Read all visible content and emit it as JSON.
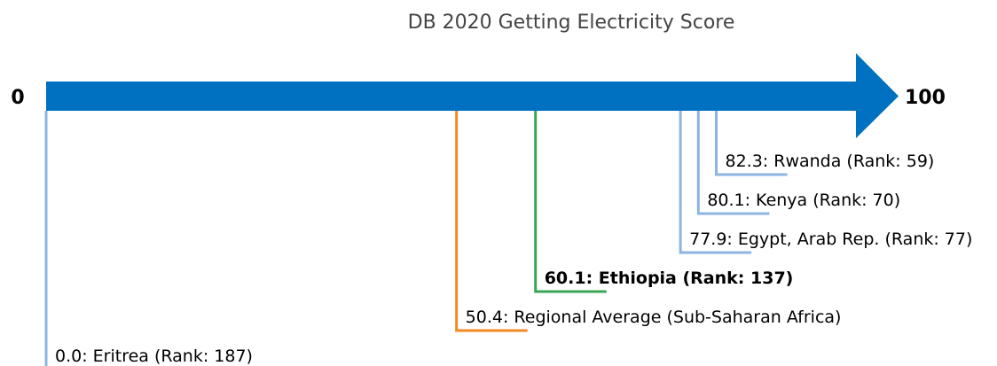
{
  "chart_data": {
    "type": "scale",
    "title": "DB 2020 Getting Electricity Score",
    "axis": {
      "min": 0,
      "max": 100,
      "min_label": "0",
      "max_label": "100",
      "arrow_color": "#0070c0"
    },
    "colors": {
      "country": "#8db4e2",
      "regional": "#f08a24",
      "highlight": "#3aa655"
    },
    "entries": [
      {
        "label": "82.3: Rwanda (Rank: 59)",
        "value": 82.3,
        "kind": "country",
        "bold": false
      },
      {
        "label": "80.1: Kenya (Rank: 70)",
        "value": 80.1,
        "kind": "country",
        "bold": false
      },
      {
        "label": "77.9: Egypt, Arab Rep. (Rank: 77)",
        "value": 77.9,
        "kind": "country",
        "bold": false
      },
      {
        "label": "60.1: Ethiopia (Rank: 137)",
        "value": 60.1,
        "kind": "highlight",
        "bold": true
      },
      {
        "label": "50.4: Regional Average (Sub-Saharan Africa)",
        "value": 50.4,
        "kind": "regional",
        "bold": false
      },
      {
        "label": "0.0: Eritrea (Rank: 187)",
        "value": 0.0,
        "kind": "country",
        "bold": false
      }
    ]
  }
}
